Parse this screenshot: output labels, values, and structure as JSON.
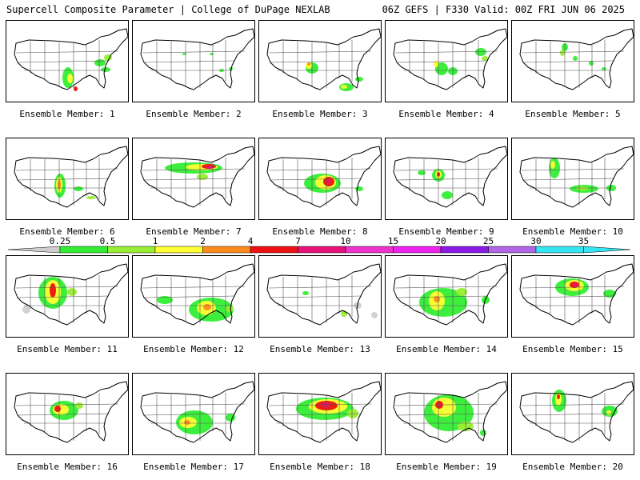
{
  "header": {
    "left": "Supercell Composite Parameter | College of DuPage NEXLAB",
    "right": "06Z GEFS | F330 Valid: 00Z FRI JUN 06 2025"
  },
  "members": [
    {
      "label": "Ensemble Member: 1"
    },
    {
      "label": "Ensemble Member: 2"
    },
    {
      "label": "Ensemble Member: 3"
    },
    {
      "label": "Ensemble Member: 4"
    },
    {
      "label": "Ensemble Member: 5"
    },
    {
      "label": "Ensemble Member: 6"
    },
    {
      "label": "Ensemble Member: 7"
    },
    {
      "label": "Ensemble Member: 8"
    },
    {
      "label": "Ensemble Member: 9"
    },
    {
      "label": "Ensemble Member: 10"
    },
    {
      "label": "Ensemble Member: 11"
    },
    {
      "label": "Ensemble Member: 12"
    },
    {
      "label": "Ensemble Member: 13"
    },
    {
      "label": "Ensemble Member: 14"
    },
    {
      "label": "Ensemble Member: 15"
    },
    {
      "label": "Ensemble Member: 16"
    },
    {
      "label": "Ensemble Member: 17"
    },
    {
      "label": "Ensemble Member: 18"
    },
    {
      "label": "Ensemble Member: 19"
    },
    {
      "label": "Ensemble Member: 20"
    }
  ],
  "legend": {
    "ticks": [
      "0.25",
      "0.5",
      "1",
      "2",
      "4",
      "7",
      "10",
      "15",
      "20",
      "25",
      "30",
      "35"
    ],
    "colors": [
      "#cfcfcf",
      "#33ee33",
      "#99ee33",
      "#ffff33",
      "#ff8c1a",
      "#ee1111",
      "#e8117a",
      "#ee33cc",
      "#ee22ee",
      "#8a1ae6",
      "#b066e6",
      "#33e6f2"
    ]
  },
  "field_colors": {
    "low": "#cfcfcf",
    "green": "#33ee33",
    "lime": "#99ee33",
    "yellow": "#ffff33",
    "orange": "#ff8c1a",
    "red": "#ee1111",
    "magenta": "#e8117a"
  }
}
